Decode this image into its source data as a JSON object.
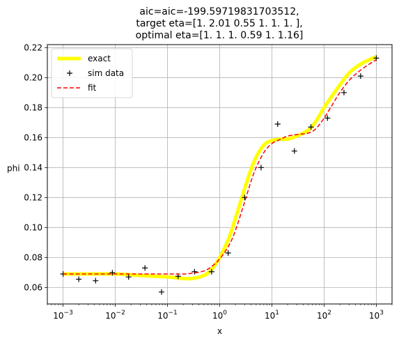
{
  "chart_data": {
    "type": "line",
    "title_lines": [
      "aic=aic=-199.59719831703512,",
      "target eta=[1.   2.01 0.55 1.   1.   1.  ],",
      "optimal eta=[1.   1.   1.   0.59 1.   1.16]"
    ],
    "xlabel": "x",
    "ylabel": "phi",
    "xscale": "log",
    "xlim": [
      0.0005,
      2000
    ],
    "ylim": [
      0.049,
      0.222
    ],
    "x_ticks": [
      {
        "value": 0.001,
        "base": "10",
        "exp": "−3"
      },
      {
        "value": 0.01,
        "base": "10",
        "exp": "−2"
      },
      {
        "value": 0.1,
        "base": "10",
        "exp": "−1"
      },
      {
        "value": 1,
        "base": "10",
        "exp": "0"
      },
      {
        "value": 10,
        "base": "10",
        "exp": "1"
      },
      {
        "value": 100,
        "base": "10",
        "exp": "2"
      },
      {
        "value": 1000,
        "base": "10",
        "exp": "3"
      }
    ],
    "y_ticks": [
      0.06,
      0.08,
      0.1,
      0.12,
      0.14,
      0.16,
      0.18,
      0.2,
      0.22
    ],
    "y_tick_labels": [
      "0.06",
      "0.08",
      "0.10",
      "0.12",
      "0.14",
      "0.16",
      "0.18",
      "0.20",
      "0.22"
    ],
    "grid": true,
    "legend_position": "top-left",
    "series": [
      {
        "name": "exact",
        "style": "line",
        "color": "#ffff00",
        "x": [
          0.001,
          0.003,
          0.01,
          0.03,
          0.1,
          0.2,
          0.3,
          0.5,
          0.7,
          1.0,
          1.5,
          2.0,
          3.0,
          4.0,
          5.0,
          7.0,
          10,
          15,
          20,
          30,
          50,
          70,
          100,
          150,
          200,
          300,
          500,
          1000
        ],
        "y": [
          0.069,
          0.069,
          0.069,
          0.068,
          0.067,
          0.066,
          0.066,
          0.068,
          0.072,
          0.08,
          0.093,
          0.106,
          0.126,
          0.139,
          0.147,
          0.155,
          0.158,
          0.159,
          0.159,
          0.161,
          0.165,
          0.171,
          0.18,
          0.189,
          0.195,
          0.203,
          0.209,
          0.214
        ]
      },
      {
        "name": "sim data",
        "style": "marker",
        "color": "#000000",
        "x": [
          0.001,
          0.002,
          0.0042,
          0.0088,
          0.018,
          0.037,
          0.077,
          0.16,
          0.33,
          0.7,
          1.45,
          3.0,
          6.2,
          12.9,
          27,
          56,
          116,
          240,
          500,
          1000
        ],
        "y": [
          0.069,
          0.0655,
          0.0645,
          0.0698,
          0.067,
          0.073,
          0.057,
          0.0675,
          0.0705,
          0.0705,
          0.083,
          0.12,
          0.14,
          0.169,
          0.151,
          0.167,
          0.173,
          0.19,
          0.201,
          0.213
        ]
      },
      {
        "name": "fit",
        "style": "dashed",
        "color": "#ff0000",
        "x": [
          0.001,
          0.003,
          0.01,
          0.03,
          0.1,
          0.2,
          0.3,
          0.5,
          0.7,
          1.0,
          1.5,
          2.0,
          3.0,
          4.0,
          5.0,
          7.0,
          10,
          15,
          20,
          30,
          50,
          70,
          100,
          150,
          200,
          300,
          500,
          1000
        ],
        "y": [
          0.069,
          0.069,
          0.069,
          0.069,
          0.069,
          0.069,
          0.0695,
          0.071,
          0.074,
          0.079,
          0.088,
          0.098,
          0.117,
          0.131,
          0.14,
          0.15,
          0.156,
          0.159,
          0.161,
          0.162,
          0.163,
          0.166,
          0.173,
          0.183,
          0.19,
          0.198,
          0.205,
          0.212
        ]
      }
    ]
  }
}
